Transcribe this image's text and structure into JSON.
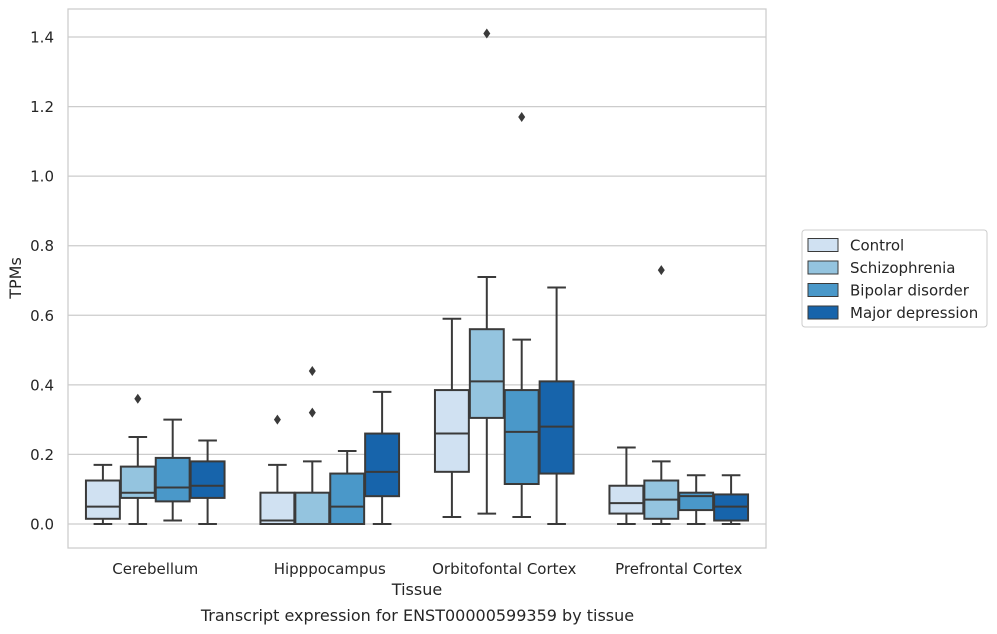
{
  "caption": "Transcript expression for ENST00000599359 by tissue",
  "colors": {
    "Control": "#d0e1f2",
    "Schizophrenia": "#94c4df",
    "Bipolar disorder": "#4a98c9",
    "Major depression": "#1764ab",
    "box_edge": "#3a3a3a",
    "grid": "#cccccc",
    "frame": "#cccccc"
  },
  "chart_data": {
    "type": "boxplot",
    "xlabel": "Tissue",
    "ylabel": "TPMs",
    "ylim": [
      -0.07,
      1.48
    ],
    "yticks": [
      0.0,
      0.2,
      0.4,
      0.6,
      0.8,
      1.0,
      1.2,
      1.4
    ],
    "ytick_labels": [
      "0.0",
      "0.2",
      "0.4",
      "0.6",
      "0.8",
      "1.0",
      "1.2",
      "1.4"
    ],
    "grid": "horizontal",
    "legend_position": "right",
    "categories": [
      "Cerebellum",
      "Hipppocampus",
      "Orbitofontal Cortex",
      "Prefrontal Cortex"
    ],
    "series": [
      {
        "name": "Control",
        "boxes": [
          {
            "whislo": 0.0,
            "q1": 0.015,
            "med": 0.05,
            "q3": 0.125,
            "whishi": 0.17,
            "fliers": []
          },
          {
            "whislo": 0.0,
            "q1": 0.0,
            "med": 0.01,
            "q3": 0.09,
            "whishi": 0.17,
            "fliers": [
              0.3
            ]
          },
          {
            "whislo": 0.02,
            "q1": 0.15,
            "med": 0.26,
            "q3": 0.385,
            "whishi": 0.59,
            "fliers": []
          },
          {
            "whislo": 0.0,
            "q1": 0.03,
            "med": 0.06,
            "q3": 0.11,
            "whishi": 0.22,
            "fliers": []
          }
        ]
      },
      {
        "name": "Schizophrenia",
        "boxes": [
          {
            "whislo": 0.0,
            "q1": 0.075,
            "med": 0.09,
            "q3": 0.165,
            "whishi": 0.25,
            "fliers": [
              0.36
            ]
          },
          {
            "whislo": 0.0,
            "q1": 0.0,
            "med": 0.0,
            "q3": 0.09,
            "whishi": 0.18,
            "fliers": [
              0.32,
              0.44
            ]
          },
          {
            "whislo": 0.03,
            "q1": 0.305,
            "med": 0.41,
            "q3": 0.56,
            "whishi": 0.71,
            "fliers": [
              1.41
            ]
          },
          {
            "whislo": 0.0,
            "q1": 0.015,
            "med": 0.07,
            "q3": 0.125,
            "whishi": 0.18,
            "fliers": [
              0.73
            ]
          }
        ]
      },
      {
        "name": "Bipolar disorder",
        "boxes": [
          {
            "whislo": 0.01,
            "q1": 0.065,
            "med": 0.105,
            "q3": 0.19,
            "whishi": 0.3,
            "fliers": []
          },
          {
            "whislo": 0.0,
            "q1": 0.0,
            "med": 0.05,
            "q3": 0.145,
            "whishi": 0.21,
            "fliers": []
          },
          {
            "whislo": 0.02,
            "q1": 0.115,
            "med": 0.265,
            "q3": 0.385,
            "whishi": 0.53,
            "fliers": [
              1.17
            ]
          },
          {
            "whislo": 0.0,
            "q1": 0.04,
            "med": 0.08,
            "q3": 0.09,
            "whishi": 0.14,
            "fliers": []
          }
        ]
      },
      {
        "name": "Major depression",
        "boxes": [
          {
            "whislo": 0.0,
            "q1": 0.075,
            "med": 0.11,
            "q3": 0.18,
            "whishi": 0.24,
            "fliers": []
          },
          {
            "whislo": 0.0,
            "q1": 0.08,
            "med": 0.15,
            "q3": 0.26,
            "whishi": 0.38,
            "fliers": []
          },
          {
            "whislo": 0.0,
            "q1": 0.145,
            "med": 0.28,
            "q3": 0.41,
            "whishi": 0.68,
            "fliers": []
          },
          {
            "whislo": 0.0,
            "q1": 0.01,
            "med": 0.05,
            "q3": 0.085,
            "whishi": 0.14,
            "fliers": []
          }
        ]
      }
    ]
  }
}
